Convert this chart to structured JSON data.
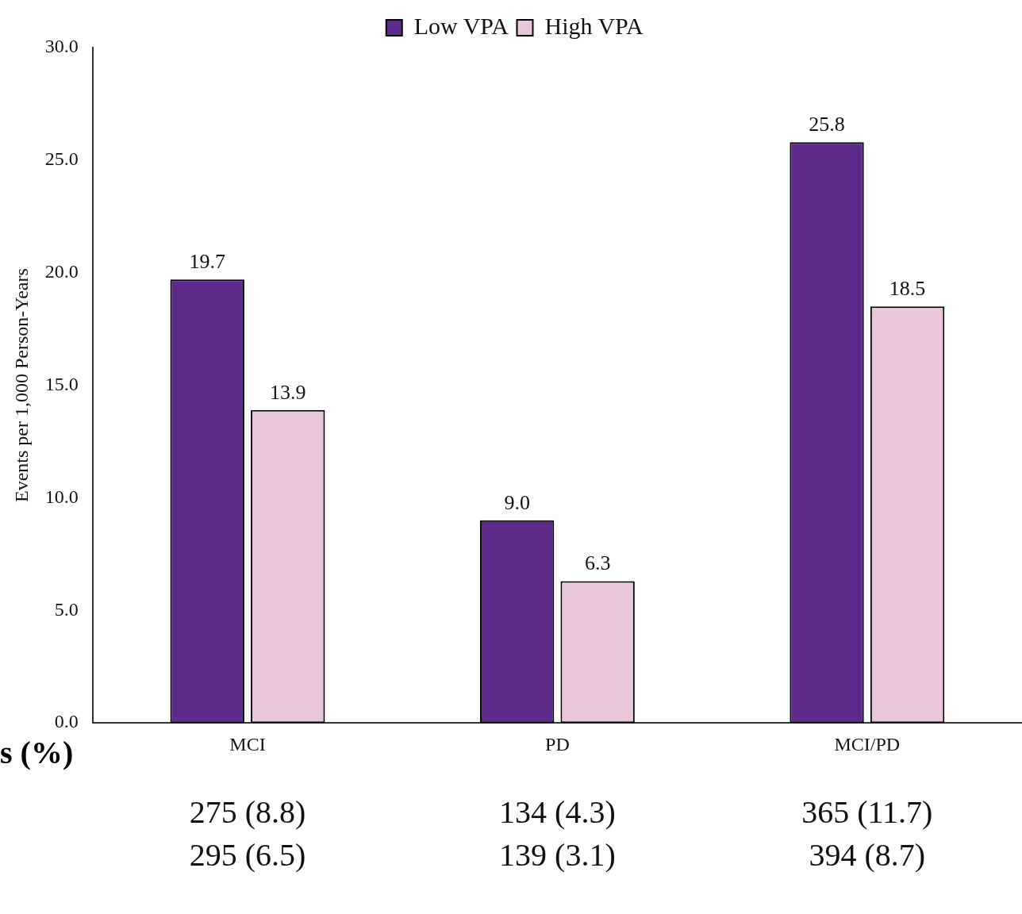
{
  "chart_data": {
    "type": "bar",
    "ylabel": "Events per 1,000 Person-Years",
    "categories": [
      "MCI",
      "PD",
      "MCI/PD"
    ],
    "series": [
      {
        "name": "Low VPA",
        "color": "#5f2a8c",
        "values": [
          19.7,
          9.0,
          25.8
        ],
        "value_labels": [
          "19.7",
          "9.0",
          "25.8"
        ]
      },
      {
        "name": "High VPA",
        "color": "#eac6dd",
        "values": [
          13.9,
          6.3,
          18.5
        ],
        "value_labels": [
          "13.9",
          "6.3",
          "18.5"
        ]
      }
    ],
    "ylim": [
      0,
      30
    ],
    "yticks": [
      {
        "value": 0,
        "label": "0.0"
      },
      {
        "value": 5,
        "label": "5.0"
      },
      {
        "value": 10,
        "label": "10.0"
      },
      {
        "value": 15,
        "label": "15.0"
      },
      {
        "value": 20,
        "label": "20.0"
      },
      {
        "value": 25,
        "label": "25.0"
      },
      {
        "value": 30,
        "label": "30.0"
      }
    ],
    "grid": false,
    "legend": "top",
    "annotations": [
      "s (%)",
      "275 (8.8)",
      "134 (4.3)",
      "365 (11.7)",
      "295 (6.5)",
      "139 (3.1)",
      "394 (8.7)"
    ]
  }
}
